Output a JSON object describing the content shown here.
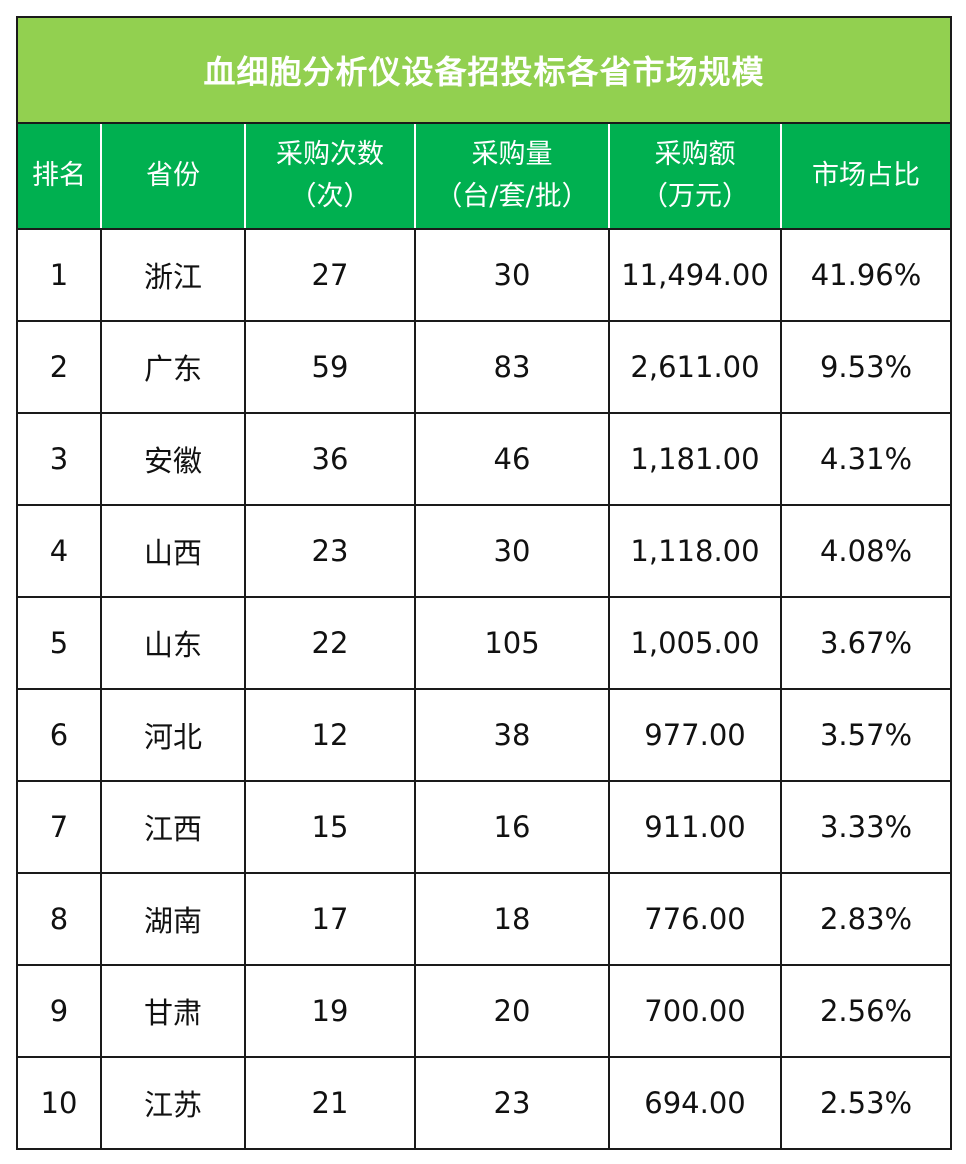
{
  "title": "血细胞分析仪设备招投标各省市场规模",
  "colors": {
    "title_bg": "#92d050",
    "header_bg": "#00b050",
    "header_text": "#ffffff"
  },
  "headers": [
    {
      "line1": "排名",
      "line2": ""
    },
    {
      "line1": "省份",
      "line2": ""
    },
    {
      "line1": "采购次数",
      "line2": "（次）"
    },
    {
      "line1": "采购量",
      "line2": "（台/套/批）"
    },
    {
      "line1": "采购额",
      "line2": "（万元）"
    },
    {
      "line1": "市场占比",
      "line2": ""
    }
  ],
  "rows": [
    {
      "rank": "1",
      "province": "浙江",
      "count": "27",
      "quantity": "30",
      "amount": "11,494.00",
      "share": "41.96%"
    },
    {
      "rank": "2",
      "province": "广东",
      "count": "59",
      "quantity": "83",
      "amount": "2,611.00",
      "share": "9.53%"
    },
    {
      "rank": "3",
      "province": "安徽",
      "count": "36",
      "quantity": "46",
      "amount": "1,181.00",
      "share": "4.31%"
    },
    {
      "rank": "4",
      "province": "山西",
      "count": "23",
      "quantity": "30",
      "amount": "1,118.00",
      "share": "4.08%"
    },
    {
      "rank": "5",
      "province": "山东",
      "count": "22",
      "quantity": "105",
      "amount": "1,005.00",
      "share": "3.67%"
    },
    {
      "rank": "6",
      "province": "河北",
      "count": "12",
      "quantity": "38",
      "amount": "977.00",
      "share": "3.57%"
    },
    {
      "rank": "7",
      "province": "江西",
      "count": "15",
      "quantity": "16",
      "amount": "911.00",
      "share": "3.33%"
    },
    {
      "rank": "8",
      "province": "湖南",
      "count": "17",
      "quantity": "18",
      "amount": "776.00",
      "share": "2.83%"
    },
    {
      "rank": "9",
      "province": "甘肃",
      "count": "19",
      "quantity": "20",
      "amount": "700.00",
      "share": "2.56%"
    },
    {
      "rank": "10",
      "province": "江苏",
      "count": "21",
      "quantity": "23",
      "amount": "694.00",
      "share": "2.53%"
    }
  ]
}
